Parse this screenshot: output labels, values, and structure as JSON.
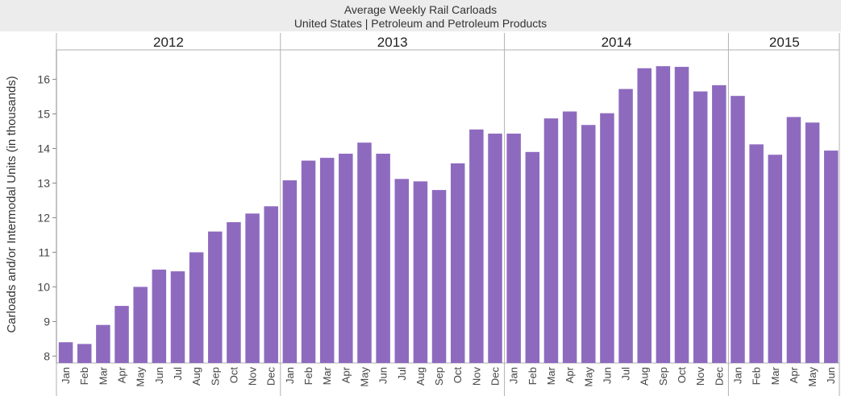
{
  "chart_data": {
    "type": "bar",
    "title": "Average Weekly Rail Carloads",
    "subtitle": "United States | Petroleum and Petroleum Products",
    "ylabel": "Carloads and/or Intermodal Units (in thousands)",
    "xlabel": "",
    "ylim": [
      7.8,
      16.85
    ],
    "yticks": [
      8,
      9,
      10,
      11,
      12,
      13,
      14,
      15,
      16
    ],
    "bar_color": "#8e6abf",
    "grid": false,
    "years": [
      {
        "label": "2012",
        "months": [
          "Jan",
          "Feb",
          "Mar",
          "Apr",
          "May",
          "Jun",
          "Jul",
          "Aug",
          "Sep",
          "Oct",
          "Nov",
          "Dec"
        ],
        "values": [
          8.4,
          8.35,
          8.9,
          9.45,
          10.0,
          10.5,
          10.45,
          11.0,
          11.6,
          11.87,
          12.12,
          12.33
        ]
      },
      {
        "label": "2013",
        "months": [
          "Jan",
          "Feb",
          "Mar",
          "Apr",
          "May",
          "Jun",
          "Jul",
          "Aug",
          "Sep",
          "Oct",
          "Nov",
          "Dec"
        ],
        "values": [
          13.08,
          13.65,
          13.73,
          13.85,
          14.17,
          13.85,
          13.12,
          13.05,
          12.8,
          13.57,
          14.55,
          14.43
        ]
      },
      {
        "label": "2014",
        "months": [
          "Jan",
          "Feb",
          "Mar",
          "Apr",
          "May",
          "Jun",
          "Jul",
          "Aug",
          "Sep",
          "Oct",
          "Nov",
          "Dec"
        ],
        "values": [
          14.43,
          13.9,
          14.87,
          15.07,
          14.68,
          15.02,
          15.72,
          16.32,
          16.38,
          16.36,
          15.65,
          15.83
        ]
      },
      {
        "label": "2015",
        "months": [
          "Jan",
          "Feb",
          "Mar",
          "Apr",
          "May",
          "Jun"
        ],
        "values": [
          15.52,
          14.12,
          13.82,
          14.91,
          14.75,
          13.94
        ]
      }
    ]
  }
}
